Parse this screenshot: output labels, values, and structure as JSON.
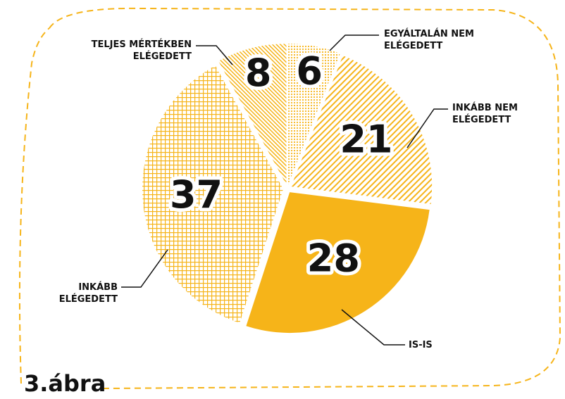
{
  "chart_data": {
    "type": "pie",
    "title": "3.ábra",
    "categories": [
      "EGYÁLTALÁN NEM ELÉGEDETT",
      "INKÁBB NEM ELÉGEDETT",
      "IS-IS",
      "INKÁBB ELÉGEDETT",
      "TELJES MÉRTÉKBEN ELÉGEDETT"
    ],
    "values": [
      6,
      21,
      28,
      37,
      8
    ],
    "color": "#f6b419"
  }
}
